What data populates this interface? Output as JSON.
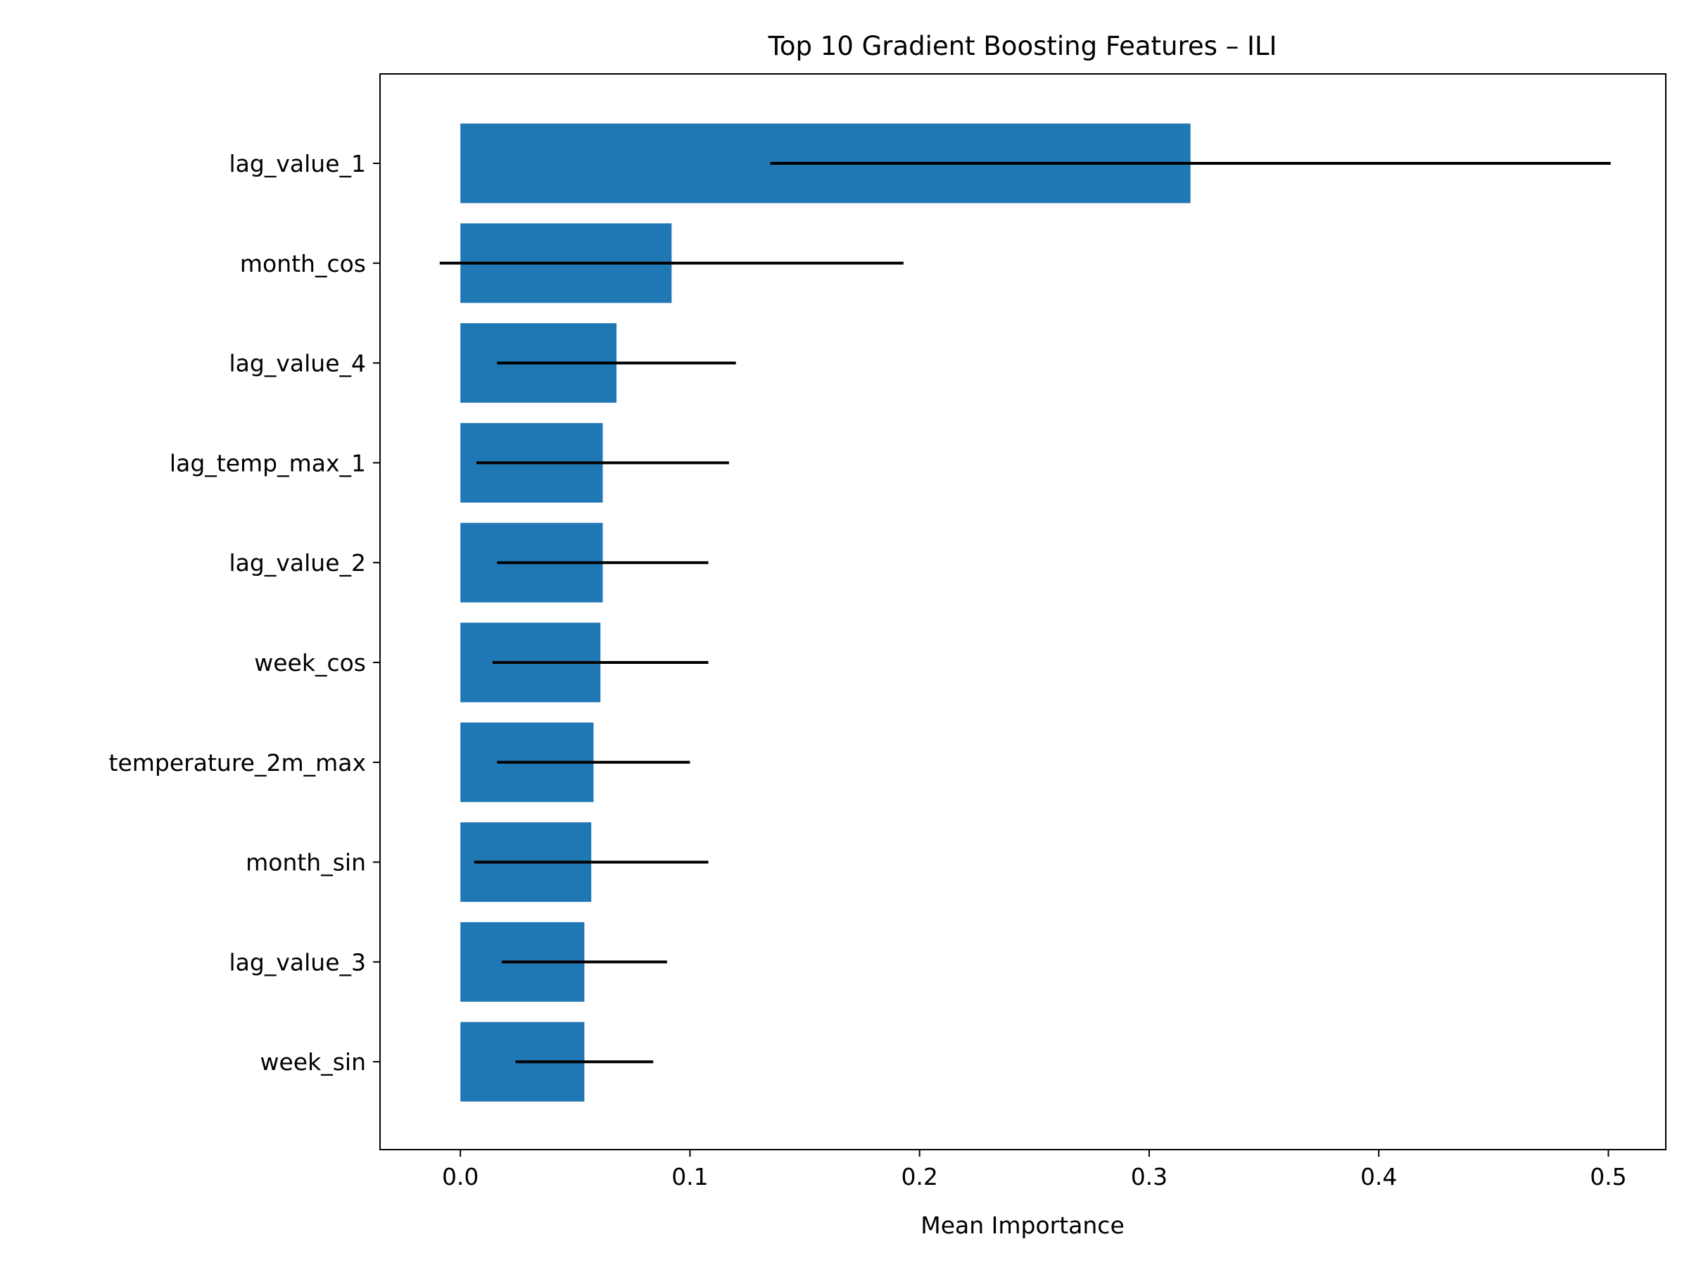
{
  "chart_data": {
    "type": "bar",
    "orientation": "horizontal",
    "title": "Top 10 Gradient Boosting Features – ILI",
    "xlabel": "Mean Importance",
    "ylabel": "",
    "xlim": [
      -0.035,
      0.525
    ],
    "xticks": [
      0.0,
      0.1,
      0.2,
      0.3,
      0.4,
      0.5
    ],
    "xtick_labels": [
      "0.0",
      "0.1",
      "0.2",
      "0.3",
      "0.4",
      "0.5"
    ],
    "grid": false,
    "legend": null,
    "bar_color": "#1f77b4",
    "errorbar_color": "#000000",
    "categories": [
      "lag_value_1",
      "month_cos",
      "lag_value_4",
      "lag_temp_max_1",
      "lag_value_2",
      "week_cos",
      "temperature_2m_max",
      "month_sin",
      "lag_value_3",
      "week_sin"
    ],
    "values": [
      0.318,
      0.092,
      0.068,
      0.062,
      0.062,
      0.061,
      0.058,
      0.057,
      0.054,
      0.054
    ],
    "errors": [
      0.183,
      0.101,
      0.052,
      0.055,
      0.046,
      0.047,
      0.042,
      0.051,
      0.036,
      0.03
    ]
  }
}
